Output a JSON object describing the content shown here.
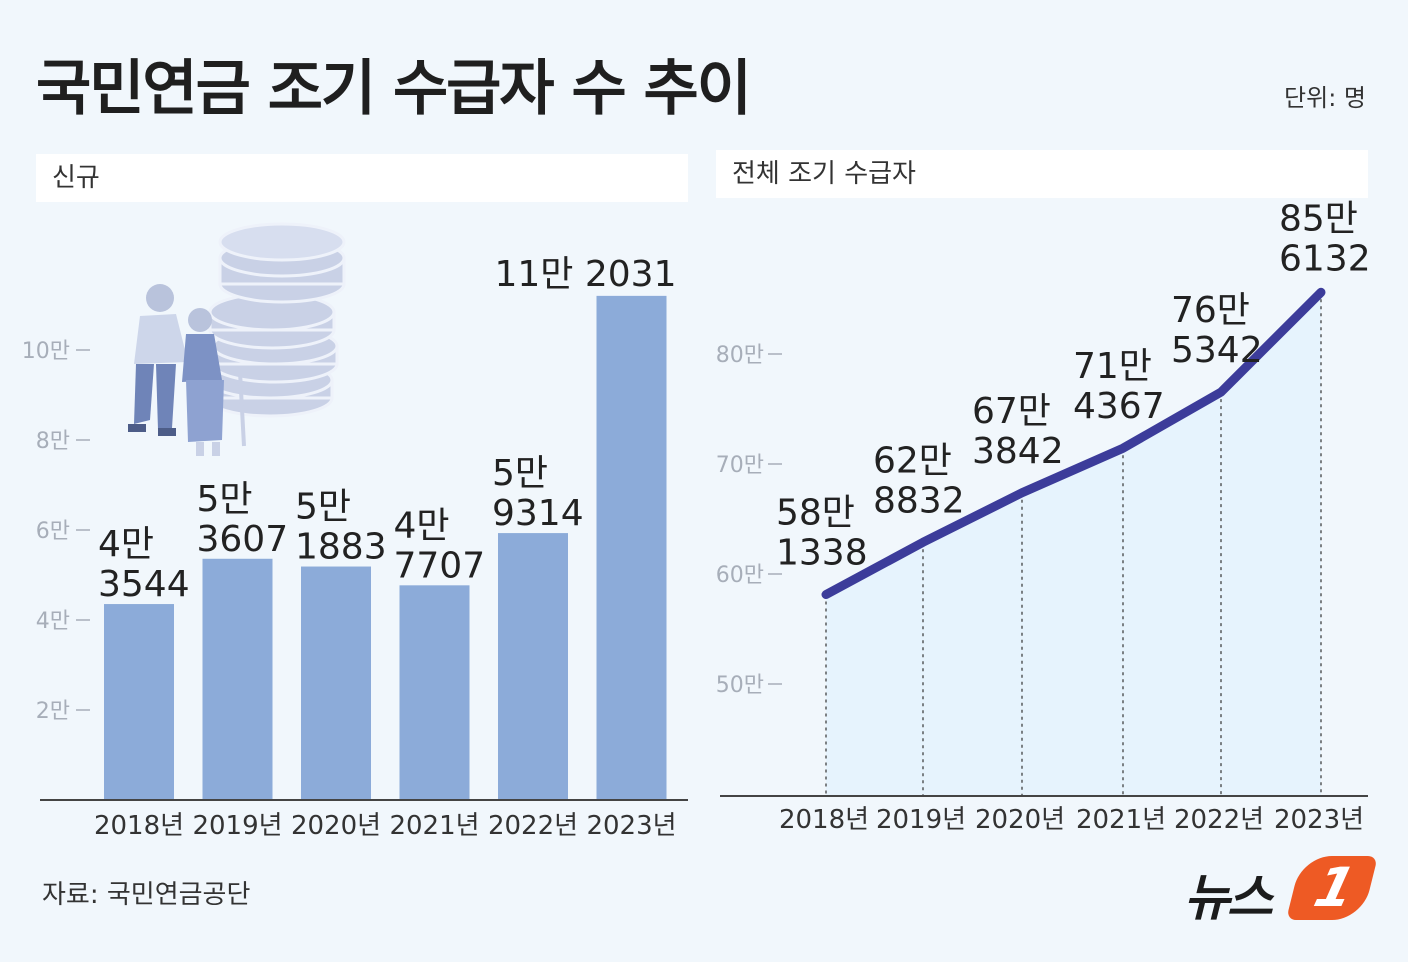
{
  "title": "국민연금 조기 수급자 수 추이",
  "unit": "단위: 명",
  "source": "자료: 국민연금공단",
  "logo": {
    "text": "뉴스",
    "badge": "1"
  },
  "colors": {
    "bar": "#8cabd9",
    "line": "#3c3c9a",
    "area": "#e6f3fd",
    "background": "#f1f7fc"
  },
  "icons": [
    "elderly-couple-with-coins-icon",
    "money-bag-in-hand-icon"
  ],
  "chart_data": [
    {
      "type": "bar",
      "title": "신규",
      "categories": [
        "2018년",
        "2019년",
        "2020년",
        "2021년",
        "2022년",
        "2023년"
      ],
      "values": [
        43544,
        53607,
        51883,
        47707,
        59314,
        112031
      ],
      "value_labels": [
        "4만\n3544",
        "5만\n3607",
        "5만\n1883",
        "4만\n7707",
        "5만\n9314",
        "11만 2031"
      ],
      "y_ticks": [
        20000,
        40000,
        60000,
        80000,
        100000
      ],
      "y_tick_labels": [
        "2만",
        "4만",
        "6만",
        "8만",
        "10만"
      ],
      "ylim": [
        0,
        120000
      ],
      "grid": false
    },
    {
      "type": "area",
      "title": "전체 조기 수급자",
      "categories": [
        "2018년",
        "2019년",
        "2020년",
        "2021년",
        "2022년",
        "2023년"
      ],
      "values": [
        581338,
        628832,
        673842,
        714367,
        765342,
        856132
      ],
      "value_labels": [
        "58만\n1338",
        "62만\n8832",
        "67만\n3842",
        "71만\n4367",
        "76만\n5342",
        "85만\n6132"
      ],
      "y_ticks": [
        500000,
        600000,
        700000,
        800000
      ],
      "y_tick_labels": [
        "50만",
        "60만",
        "70만",
        "80만"
      ],
      "ylim": [
        400000,
        900000
      ],
      "grid": false
    }
  ]
}
